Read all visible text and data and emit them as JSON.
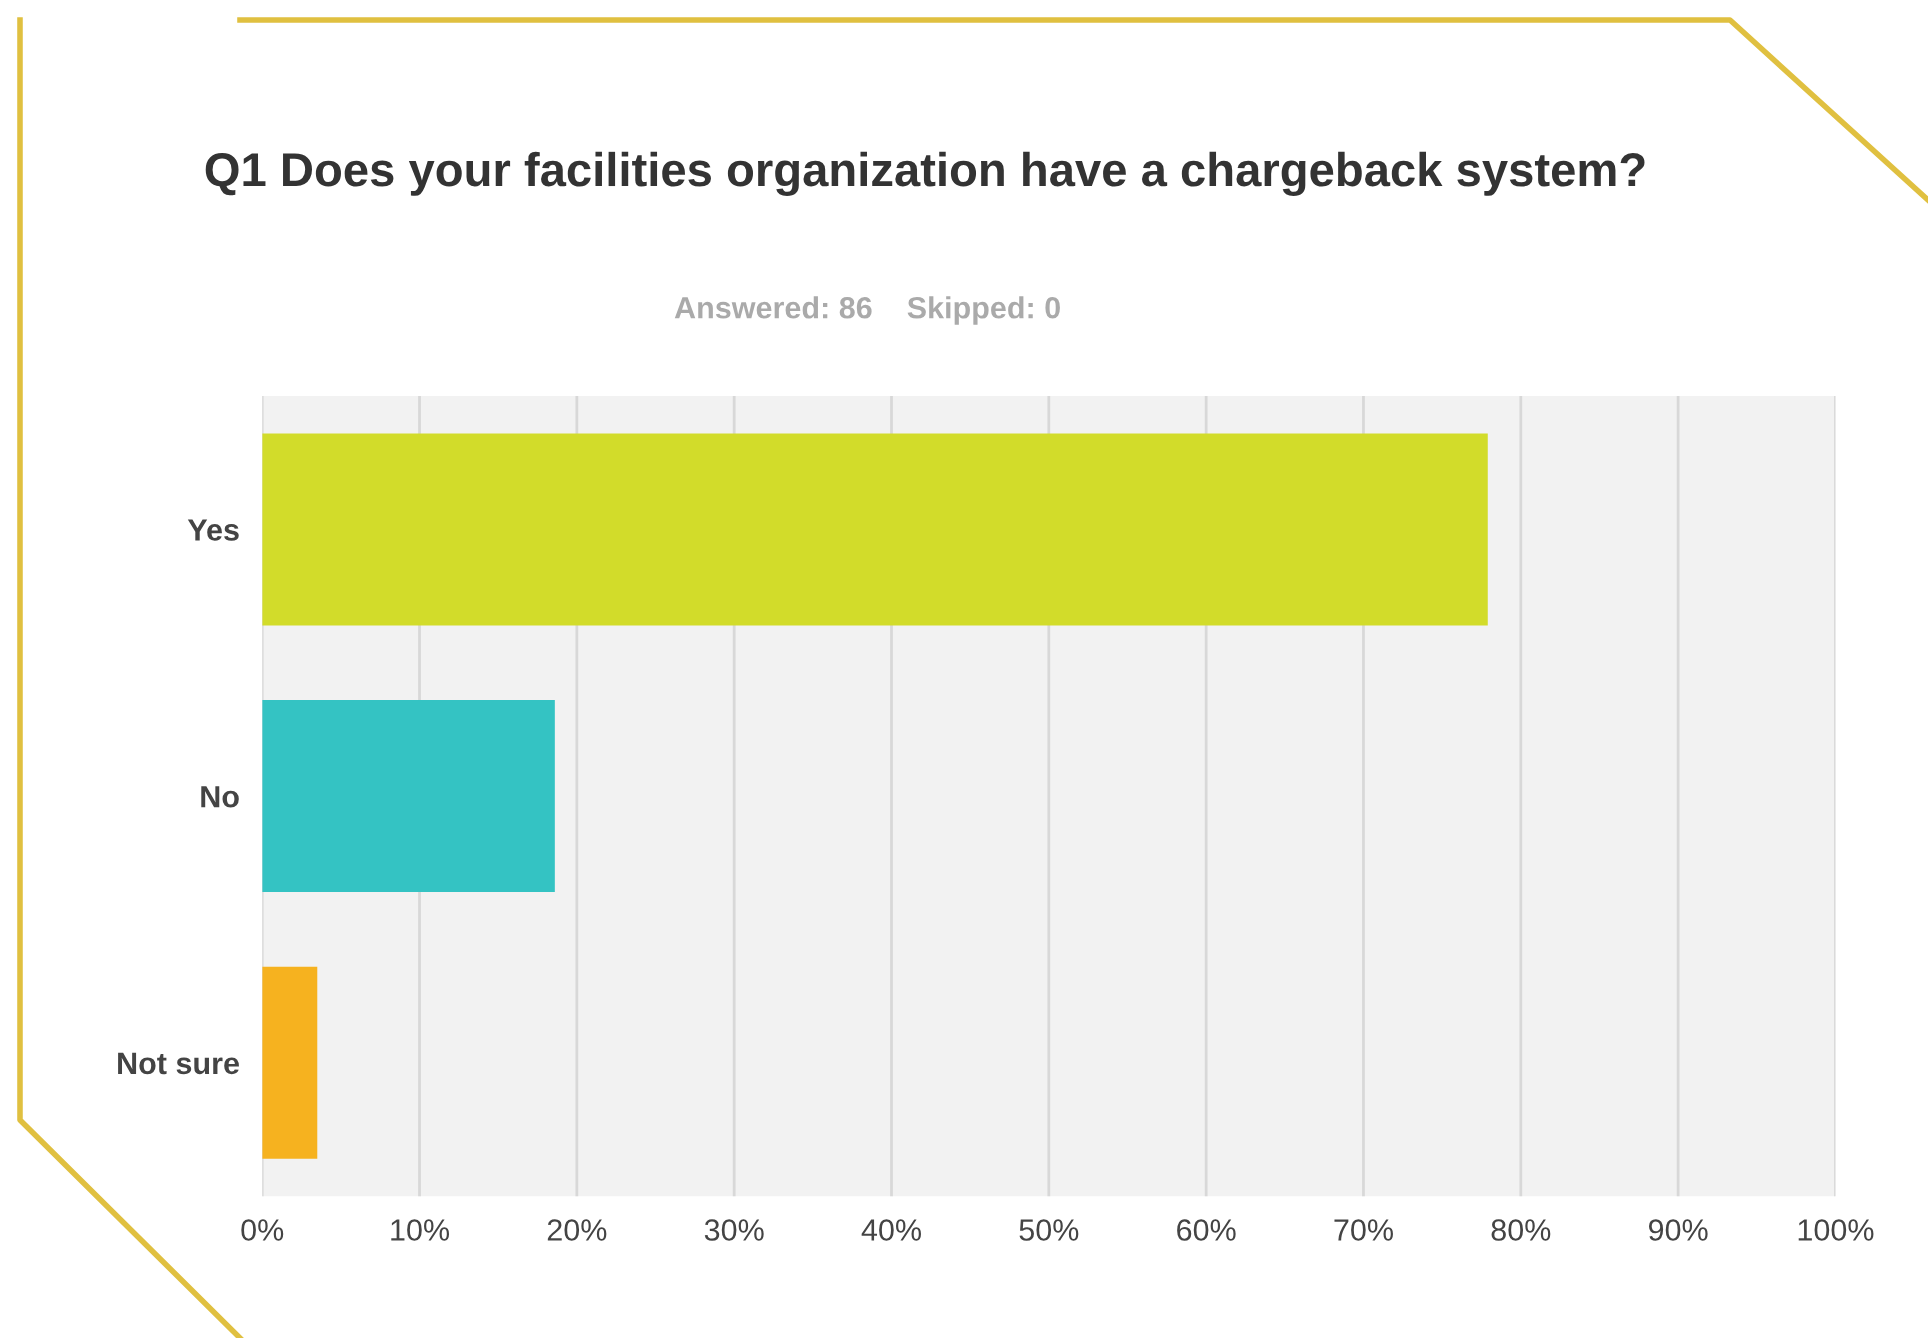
{
  "chart_data": {
    "type": "bar",
    "orientation": "horizontal",
    "title": "Q1 Does your facilities organization have a chargeback system?",
    "subtitle": "Answered: 86    Skipped: 0",
    "categories": [
      "Yes",
      "No",
      "Not sure"
    ],
    "values": [
      77.9,
      18.6,
      3.5
    ],
    "colors": [
      "#d2dc2a",
      "#34c3c3",
      "#f6b21f"
    ],
    "xlim": [
      0,
      100
    ],
    "xticks": [
      {
        "value": 0,
        "label": "0%"
      },
      {
        "value": 10,
        "label": "10%"
      },
      {
        "value": 20,
        "label": "20%"
      },
      {
        "value": 30,
        "label": "30%"
      },
      {
        "value": 40,
        "label": "40%"
      },
      {
        "value": 50,
        "label": "50%"
      },
      {
        "value": 60,
        "label": "60%"
      },
      {
        "value": 70,
        "label": "70%"
      },
      {
        "value": 80,
        "label": "80%"
      },
      {
        "value": 90,
        "label": "90%"
      },
      {
        "value": 100,
        "label": "100%"
      }
    ],
    "grid": "x"
  }
}
